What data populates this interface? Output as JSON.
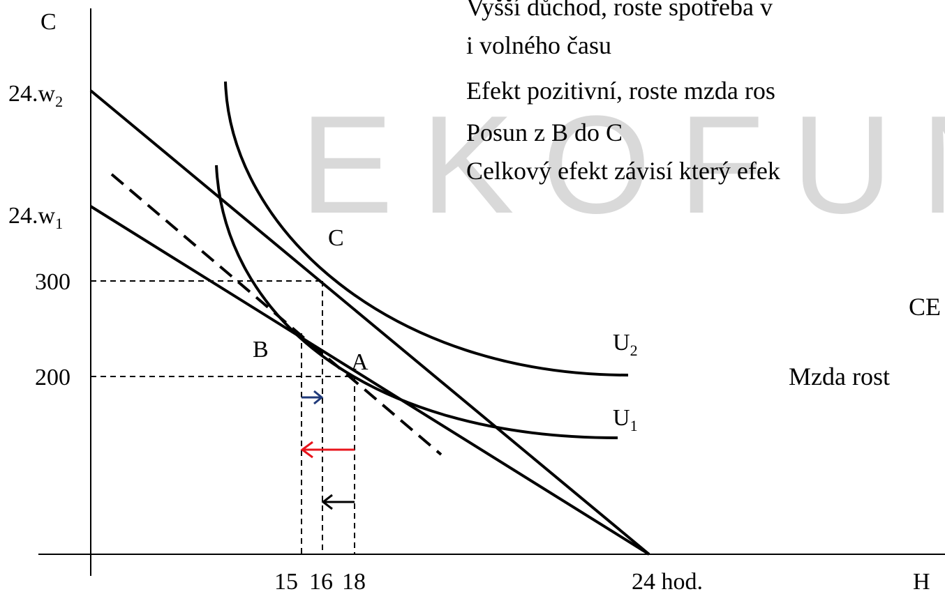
{
  "axes": {
    "y_label": "C",
    "x_label": "H"
  },
  "y_labels": [
    {
      "text": "24.w",
      "sub": "2"
    },
    {
      "text": "24.w",
      "sub": "1"
    },
    {
      "text": "300"
    },
    {
      "text": "200"
    }
  ],
  "x_labels": [
    "15",
    "16",
    "18",
    "24 hod."
  ],
  "points": [
    "C",
    "B",
    "A"
  ],
  "curves": [
    {
      "text": "U",
      "sub": "2"
    },
    {
      "text": "U",
      "sub": "1"
    }
  ],
  "notes": [
    "Vyšší důchod, roste spotřeba v",
    "i volného času",
    "Efekt pozitivní, roste mzda ros",
    "Posun z B do C",
    "Celkový efekt závisí který efek"
  ],
  "side_notes": [
    "CE",
    "Mzda rost"
  ],
  "watermark": "EKOFUN"
}
